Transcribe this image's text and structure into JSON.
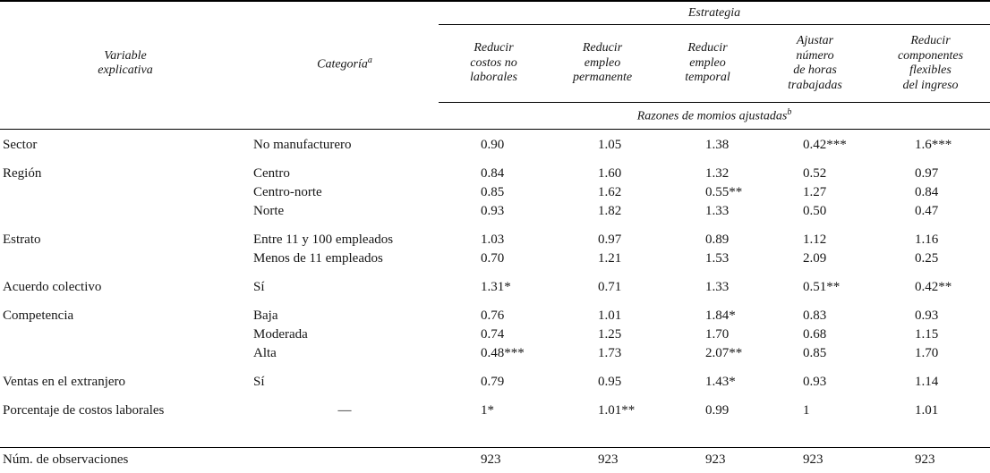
{
  "table": {
    "col_group_header": "Estrategia",
    "subheader": {
      "text": "Razones de momios ajustadas",
      "sup": "b"
    },
    "columns": {
      "variable": {
        "line1": "Variable",
        "line2": "explicativa"
      },
      "categoria": {
        "text": "Categoría",
        "sup": "a"
      },
      "strategies": [
        {
          "lines": [
            "Reducir",
            "costos no",
            "laborales"
          ]
        },
        {
          "lines": [
            "Reducir",
            "empleo",
            "permanente"
          ]
        },
        {
          "lines": [
            "Reducir",
            "empleo",
            "temporal"
          ]
        },
        {
          "lines": [
            "Ajustar",
            "número",
            "de horas",
            "trabajadas"
          ]
        },
        {
          "lines": [
            "Reducir",
            "componentes",
            "flexibles",
            "del ingreso"
          ]
        }
      ]
    },
    "groups": [
      {
        "variable": "Sector",
        "rows": [
          {
            "category": "No manufacturero",
            "values": [
              "0.90",
              "1.05",
              "1.38",
              "0.42***",
              "1.6***"
            ]
          }
        ]
      },
      {
        "variable": "Región",
        "rows": [
          {
            "category": "Centro",
            "values": [
              "0.84",
              "1.60",
              "1.32",
              "0.52",
              "0.97"
            ]
          },
          {
            "category": "Centro-norte",
            "values": [
              "0.85",
              "1.62",
              "0.55**",
              "1.27",
              "0.84"
            ]
          },
          {
            "category": "Norte",
            "values": [
              "0.93",
              "1.82",
              "1.33",
              "0.50",
              "0.47"
            ]
          }
        ]
      },
      {
        "variable": "Estrato",
        "rows": [
          {
            "category": "Entre 11 y 100 empleados",
            "values": [
              "1.03",
              "0.97",
              "0.89",
              "1.12",
              "1.16"
            ]
          },
          {
            "category": "Menos de 11 empleados",
            "values": [
              "0.70",
              "1.21",
              "1.53",
              "2.09",
              "0.25"
            ]
          }
        ]
      },
      {
        "variable": "Acuerdo colectivo",
        "rows": [
          {
            "category": "Sí",
            "values": [
              "1.31*",
              "0.71",
              "1.33",
              "0.51**",
              "0.42**"
            ]
          }
        ]
      },
      {
        "variable": "Competencia",
        "rows": [
          {
            "category": "Baja",
            "values": [
              "0.76",
              "1.01",
              "1.84*",
              "0.83",
              "0.93"
            ]
          },
          {
            "category": "Moderada",
            "values": [
              "0.74",
              "1.25",
              "1.70",
              "0.68",
              "1.15"
            ]
          },
          {
            "category": "Alta",
            "values": [
              "0.48***",
              "1.73",
              "2.07**",
              "0.85",
              "1.70"
            ]
          }
        ]
      },
      {
        "variable": "Ventas en el extranjero",
        "rows": [
          {
            "category": "Sí",
            "values": [
              "0.79",
              "0.95",
              "1.43*",
              "0.93",
              "1.14"
            ]
          }
        ]
      },
      {
        "variable": "Porcentaje de costos laborales",
        "rows": [
          {
            "category": "—",
            "values": [
              "1*",
              "1.01**",
              "0.99",
              "1",
              "1.01"
            ]
          }
        ]
      }
    ],
    "footer": {
      "label": "Núm. de observaciones",
      "values": [
        "923",
        "923",
        "923",
        "923",
        "923"
      ]
    }
  }
}
